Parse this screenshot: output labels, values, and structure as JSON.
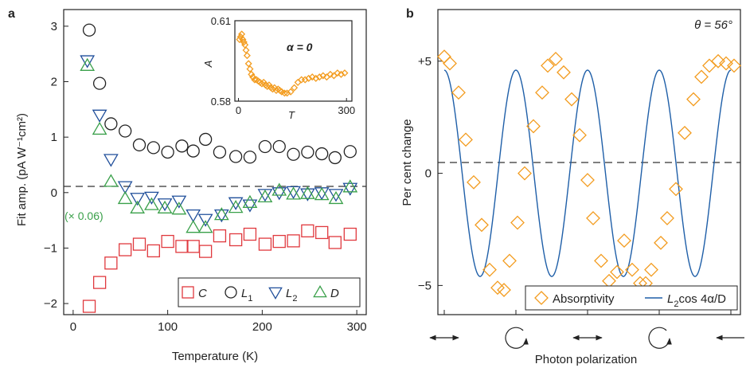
{
  "colors": {
    "C": "#e0393e",
    "L1": "#222222",
    "L2": "#1f4e9a",
    "D": "#3aa04a",
    "absorptivity": "#f39c1f",
    "fit": "#1f5fa8",
    "dashed": "#333333"
  },
  "chart_data": [
    {
      "panel": "a",
      "type": "scatter",
      "xlabel": "Temperature (K)",
      "ylabel": "Fit amp. (pA W⁻¹cm²)",
      "xlim": [
        -10,
        310
      ],
      "ylim": [
        -2.2,
        3.3
      ],
      "xticks": [
        "0",
        "100",
        "200",
        "300"
      ],
      "yticks": [
        "−2",
        "−1",
        "0",
        "1",
        "2",
        "3"
      ],
      "xtick_values": [
        0,
        100,
        200,
        300
      ],
      "ytick_values": [
        -2,
        -1,
        0,
        1,
        2,
        3
      ],
      "reference_line_y": 0,
      "annotation": "(× 0.06)",
      "legend_position": "bottom-right",
      "series": [
        {
          "name": "C",
          "key": "C",
          "marker": "square",
          "x": [
            17,
            28,
            40,
            55,
            70,
            85,
            100,
            115,
            127,
            140,
            155,
            172,
            187,
            203,
            218,
            233,
            248,
            263,
            277,
            293
          ],
          "y": [
            -2.05,
            -1.62,
            -1.27,
            -1.03,
            -0.93,
            -1.05,
            -0.88,
            -0.97,
            -0.97,
            -1.06,
            -0.78,
            -0.85,
            -0.75,
            -0.93,
            -0.88,
            -0.87,
            -0.69,
            -0.72,
            -0.9,
            -0.75
          ]
        },
        {
          "name": "L",
          "sub": "1",
          "key": "L1",
          "marker": "circle",
          "x": [
            17,
            28,
            40,
            55,
            70,
            85,
            100,
            115,
            127,
            140,
            155,
            172,
            187,
            203,
            218,
            233,
            248,
            263,
            277,
            293
          ],
          "y": [
            2.93,
            1.97,
            1.24,
            1.11,
            0.86,
            0.81,
            0.73,
            0.84,
            0.75,
            0.96,
            0.73,
            0.65,
            0.64,
            0.83,
            0.83,
            0.69,
            0.73,
            0.7,
            0.63,
            0.74
          ]
        },
        {
          "name": "L",
          "sub": "2",
          "key": "L2",
          "marker": "triangle-down",
          "x": [
            15,
            28,
            40,
            55,
            68,
            83,
            97,
            112,
            127,
            140,
            157,
            172,
            187,
            203,
            218,
            233,
            248,
            263,
            278,
            293
          ],
          "y": [
            2.38,
            1.4,
            0.6,
            0.11,
            -0.1,
            -0.08,
            -0.2,
            -0.15,
            -0.4,
            -0.48,
            -0.4,
            -0.18,
            -0.22,
            -0.03,
            0.0,
            0.02,
            -0.02,
            0.0,
            -0.03,
            0.08
          ]
        },
        {
          "name": "D",
          "key": "D",
          "marker": "triangle-up",
          "x": [
            15,
            28,
            40,
            55,
            68,
            83,
            97,
            112,
            127,
            140,
            157,
            172,
            187,
            203,
            218,
            233,
            248,
            263,
            278,
            293
          ],
          "y": [
            2.29,
            1.14,
            0.2,
            -0.11,
            -0.28,
            -0.22,
            -0.28,
            -0.3,
            -0.63,
            -0.63,
            -0.4,
            -0.27,
            -0.18,
            -0.08,
            0.04,
            -0.03,
            -0.02,
            -0.04,
            -0.11,
            0.1
          ]
        }
      ],
      "inset": {
        "type": "scatter",
        "title": "α = 0",
        "xlabel": "T",
        "ylabel": "A",
        "xlim": [
          -10,
          315
        ],
        "ylim": [
          0.58,
          0.61
        ],
        "xticks": [
          "0",
          "300"
        ],
        "xtick_values": [
          0,
          300
        ],
        "yticks": [
          "0.58",
          "0.61"
        ],
        "ytick_values": [
          0.58,
          0.61
        ],
        "series": [
          {
            "name": "",
            "key": "absorptivity",
            "marker": "diamond",
            "x": [
              3,
              6,
              9,
              12,
              15,
              18,
              21,
              24,
              28,
              32,
              36,
              40,
              45,
              50,
              55,
              60,
              65,
              70,
              75,
              80,
              85,
              90,
              95,
              100,
              105,
              110,
              115,
              120,
              128,
              135,
              145,
              155,
              165,
              175,
              185,
              195,
              205,
              215,
              225,
              235,
              245,
              255,
              265,
              275,
              285,
              295
            ],
            "y": [
              0.603,
              0.604,
              0.605,
              0.603,
              0.602,
              0.601,
              0.599,
              0.597,
              0.594,
              0.592,
              0.59,
              0.589,
              0.588,
              0.588,
              0.5875,
              0.587,
              0.5865,
              0.587,
              0.586,
              0.5855,
              0.586,
              0.585,
              0.5845,
              0.585,
              0.584,
              0.5845,
              0.584,
              0.5835,
              0.583,
              0.583,
              0.5835,
              0.585,
              0.587,
              0.588,
              0.588,
              0.5885,
              0.589,
              0.5885,
              0.589,
              0.5895,
              0.589,
              0.59,
              0.5895,
              0.5905,
              0.59,
              0.5905
            ]
          }
        ]
      }
    },
    {
      "panel": "b",
      "type": "scatter",
      "xlabel": "Photon polarization",
      "ylabel": "Per cent change",
      "xlim": [
        -8,
        372
      ],
      "ylim": [
        -6.3,
        7.3
      ],
      "yticks": [
        "−5",
        "0",
        "+5"
      ],
      "ytick_values": [
        -5,
        0,
        5
      ],
      "reference_line_y": 0,
      "annotation": "θ = 56°",
      "polarization_markers": [
        0,
        90,
        180,
        270,
        360
      ],
      "polarization_symbols": [
        "linear",
        "circular",
        "linear",
        "circular",
        "linear"
      ],
      "legend_position": "bottom",
      "series": [
        {
          "name": "Absorptivity",
          "key": "absorptivity",
          "marker": "diamond",
          "x": [
            0,
            7,
            18,
            27,
            37,
            47,
            57,
            67,
            75,
            82,
            92,
            101,
            112,
            123,
            130,
            140,
            150,
            160,
            170,
            180,
            187,
            197,
            207,
            217,
            226,
            236,
            246,
            253,
            260,
            272,
            280,
            291,
            302,
            313,
            323,
            333,
            344,
            354,
            364
          ],
          "y": [
            5.2,
            4.9,
            3.6,
            1.5,
            -0.4,
            -2.3,
            -4.3,
            -5.1,
            -5.2,
            -3.9,
            -2.2,
            0.0,
            2.1,
            3.6,
            4.8,
            5.1,
            4.5,
            3.3,
            1.7,
            -0.3,
            -2.0,
            -3.9,
            -4.8,
            -4.4,
            -3.0,
            -4.3,
            -4.9,
            -4.9,
            -4.3,
            -3.1,
            -2.0,
            -0.7,
            1.8,
            3.3,
            4.3,
            4.8,
            5.0,
            4.9,
            4.8
          ]
        },
        {
          "name": "L",
          "sub": "2",
          "name_suffix": "cos 4α/D",
          "key": "fit",
          "line": true,
          "amplitude": 4.6,
          "x_range": [
            0,
            360
          ]
        }
      ]
    }
  ],
  "labels": {
    "panel_a": "a",
    "panel_b": "b"
  }
}
